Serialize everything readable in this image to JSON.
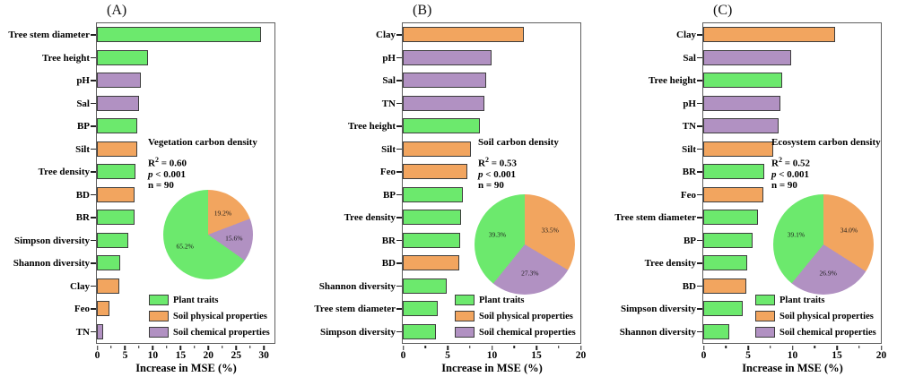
{
  "figure": {
    "group_colors": {
      "plant": "#6ce96d",
      "physical": "#f2a55f",
      "chemical": "#b191c2"
    },
    "legend": [
      {
        "group": "plant",
        "label": "Plant traits"
      },
      {
        "group": "physical",
        "label": "Soil physical properties"
      },
      {
        "group": "chemical",
        "label": "Soil chemical properties"
      }
    ]
  },
  "chart_data": [
    {
      "type": "bar",
      "orientation": "horizontal",
      "panel": "(A)",
      "title": "Vegetation carbon density",
      "stats": {
        "r2_prefix": "R",
        "r2_sup": "2",
        "r2_eq": " = 0.60",
        "p_var": "p",
        "p_rest": " < 0.001",
        "n_text": "n = 90"
      },
      "xlabel": "Increase in MSE (%)",
      "xlim": [
        0,
        32
      ],
      "xticks": [
        0,
        5,
        10,
        15,
        20,
        25,
        30
      ],
      "categories": [
        "Tree stem diameter",
        "Tree height",
        "pH",
        "Sal",
        "BP",
        "Silt",
        "Tree density",
        "BD",
        "BR",
        "Simpson diversity",
        "Shannon diversity",
        "Clay",
        "Feo",
        "TN"
      ],
      "values": [
        29.6,
        9.2,
        7.9,
        7.6,
        7.3,
        7.3,
        6.9,
        6.8,
        6.8,
        5.6,
        4.2,
        4.1,
        2.2,
        1.2
      ],
      "groups": [
        "plant",
        "plant",
        "chemical",
        "chemical",
        "plant",
        "physical",
        "plant",
        "physical",
        "plant",
        "plant",
        "plant",
        "physical",
        "physical",
        "chemical"
      ],
      "pie": [
        {
          "group": "physical",
          "value": 19.2,
          "label": "19.2%"
        },
        {
          "group": "chemical",
          "value": 15.6,
          "label": "15.6%"
        },
        {
          "group": "plant",
          "value": 65.2,
          "label": "65.2%"
        }
      ]
    },
    {
      "type": "bar",
      "orientation": "horizontal",
      "panel": "(B)",
      "title": "Soil carbon density",
      "stats": {
        "r2_prefix": "R",
        "r2_sup": "2",
        "r2_eq": " = 0.53",
        "p_var": "p",
        "p_rest": " < 0.001",
        "n_text": "n = 90"
      },
      "xlabel": "Increase in MSE (%)",
      "xlim": [
        0,
        20
      ],
      "xticks": [
        0,
        5,
        10,
        15,
        20
      ],
      "categories": [
        "Clay",
        "pH",
        "Sal",
        "TN",
        "Tree height",
        "Silt",
        "Feo",
        "BP",
        "Tree density",
        "BR",
        "BD",
        "Shannon diversity",
        "Tree stem diameter",
        "Simpson diversity"
      ],
      "values": [
        13.6,
        10.0,
        9.4,
        9.2,
        8.7,
        7.7,
        7.3,
        6.8,
        6.6,
        6.5,
        6.4,
        4.9,
        3.9,
        3.7
      ],
      "groups": [
        "physical",
        "chemical",
        "chemical",
        "chemical",
        "plant",
        "physical",
        "physical",
        "plant",
        "plant",
        "plant",
        "physical",
        "plant",
        "plant",
        "plant"
      ],
      "pie": [
        {
          "group": "physical",
          "value": 33.5,
          "label": "33.5%"
        },
        {
          "group": "chemical",
          "value": 27.3,
          "label": "27.3%"
        },
        {
          "group": "plant",
          "value": 39.3,
          "label": "39.3%"
        }
      ]
    },
    {
      "type": "bar",
      "orientation": "horizontal",
      "panel": "(C)",
      "title": "Ecosystem carbon density",
      "stats": {
        "r2_prefix": "R",
        "r2_sup": "2",
        "r2_eq": " = 0.52",
        "p_var": "p",
        "p_rest": " < 0.001",
        "n_text": "n = 90"
      },
      "xlabel": "Increase in MSE (%)",
      "xlim": [
        0,
        20
      ],
      "xticks": [
        0,
        5,
        10,
        15,
        20
      ],
      "categories": [
        "Clay",
        "Sal",
        "Tree height",
        "pH",
        "TN",
        "Silt",
        "BR",
        "Feo",
        "Tree stem diameter",
        "BP",
        "Tree density",
        "BD",
        "Simpson diversity",
        "Shannon diversity"
      ],
      "values": [
        14.8,
        9.9,
        8.9,
        8.7,
        8.5,
        7.9,
        6.9,
        6.8,
        6.2,
        5.6,
        4.9,
        4.8,
        4.4,
        2.9
      ],
      "groups": [
        "physical",
        "chemical",
        "plant",
        "chemical",
        "chemical",
        "physical",
        "plant",
        "physical",
        "plant",
        "plant",
        "plant",
        "physical",
        "plant",
        "plant"
      ],
      "pie": [
        {
          "group": "physical",
          "value": 34.0,
          "label": "34.0%"
        },
        {
          "group": "chemical",
          "value": 26.9,
          "label": "26.9%"
        },
        {
          "group": "plant",
          "value": 39.1,
          "label": "39.1%"
        }
      ]
    }
  ]
}
